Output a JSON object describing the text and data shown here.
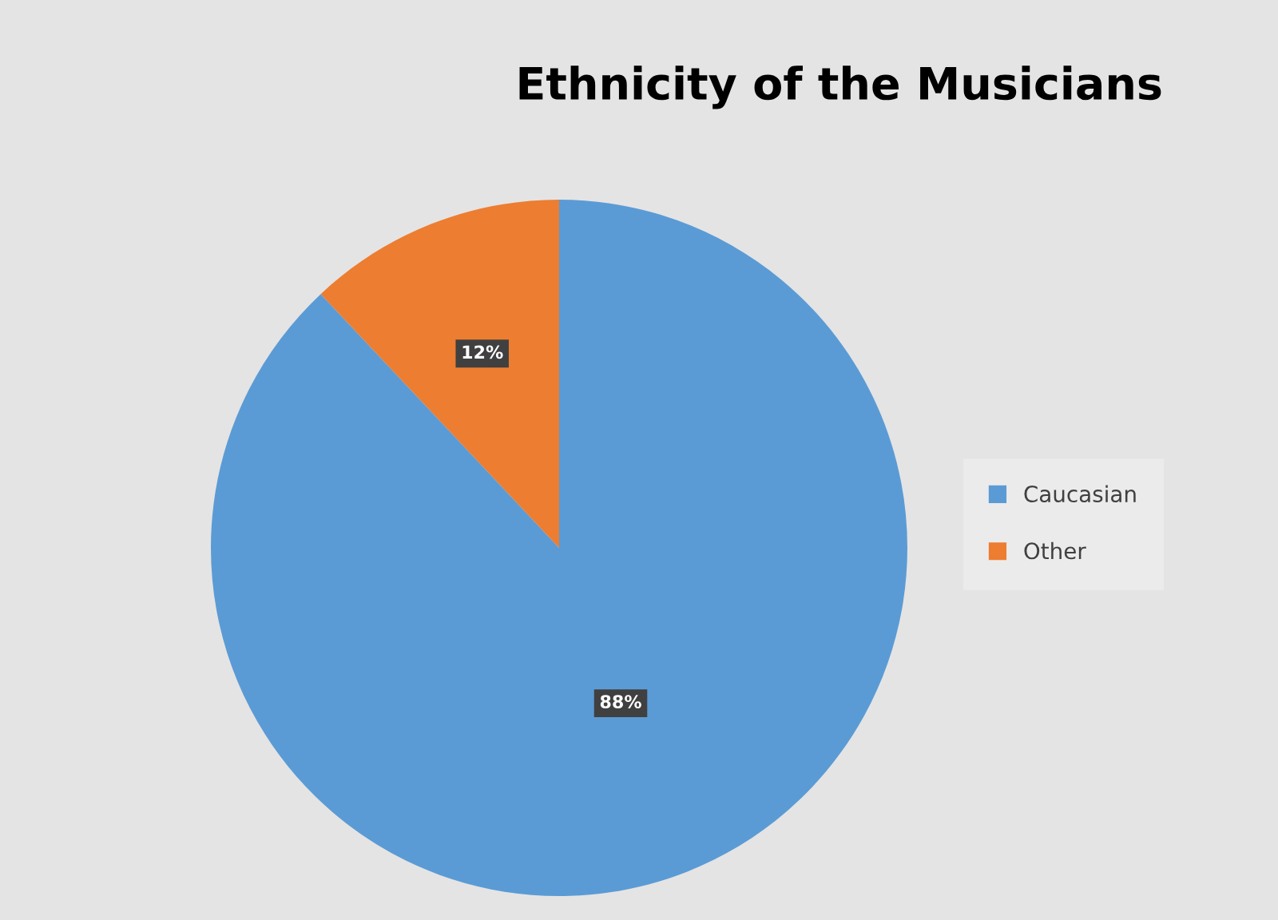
{
  "chart_data": {
    "type": "pie",
    "title": "Ethnicity of the Musicians",
    "categories": [
      "Caucasian",
      "Other"
    ],
    "values": [
      88,
      12
    ],
    "colors": [
      "#5b9bd5",
      "#ed7d31"
    ],
    "value_labels": [
      "88%",
      "12%"
    ],
    "legend": "right"
  }
}
